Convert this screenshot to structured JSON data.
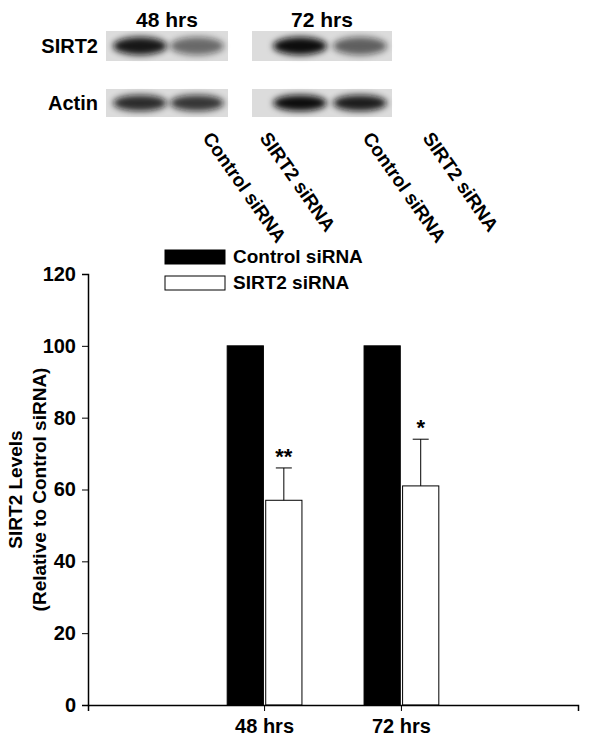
{
  "chart_data": {
    "type": "bar",
    "categories": [
      "48 hrs",
      "72 hrs"
    ],
    "series": [
      {
        "name": "Control siRNA",
        "color": "#000000",
        "values": [
          100,
          100
        ]
      },
      {
        "name": "SIRT2 siRNA",
        "color": "#ffffff",
        "values": [
          57,
          61
        ],
        "errors": [
          9,
          13
        ],
        "significance": [
          "**",
          "*"
        ]
      }
    ],
    "ylabel": [
      "SIRT2 Levels",
      "(Relative to Control siRNA)"
    ],
    "ylim": [
      0,
      120
    ],
    "yticks": [
      0,
      20,
      40,
      60,
      80,
      100,
      120
    ],
    "legend": "top",
    "grid": false
  },
  "blot": {
    "timepoints": [
      "48 hrs",
      "72 hrs"
    ],
    "rows": [
      "SIRT2",
      "Actin"
    ],
    "lanes": [
      "Control siRNA",
      "SIRT2 siRNA",
      "Control siRNA",
      "SIRT2 siRNA"
    ]
  }
}
